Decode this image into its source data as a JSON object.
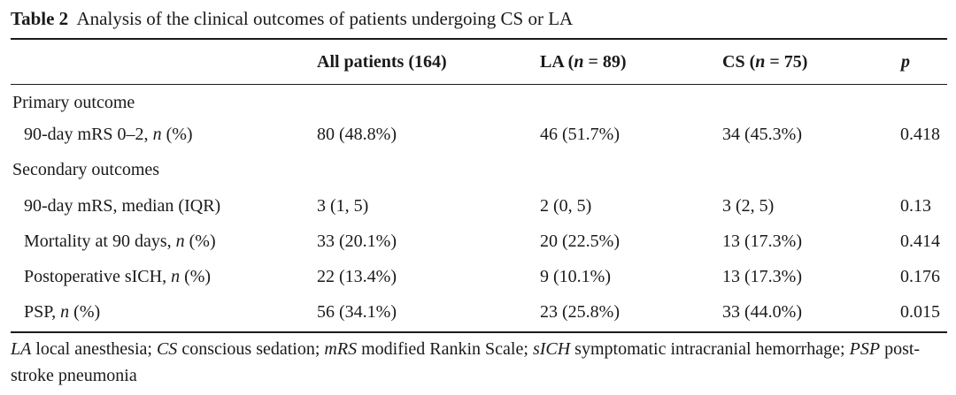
{
  "caption": {
    "label": "Table 2",
    "title": "Analysis of the clinical outcomes of patients undergoing CS or LA"
  },
  "header": {
    "all": "All patients (164)",
    "la_prefix": "LA (",
    "la_n": "n",
    "la_suffix": " = 89)",
    "cs_prefix": "CS (",
    "cs_n": "n",
    "cs_suffix": " = 75)",
    "p": "p"
  },
  "sections": {
    "primary": "Primary outcome",
    "secondary": "Secondary outcomes"
  },
  "rows": [
    {
      "label_main": "90-day mRS 0–2, ",
      "label_italic": "n",
      "label_tail": " (%)",
      "all": "80 (48.8%)",
      "la": "46 (51.7%)",
      "cs": "34 (45.3%)",
      "p": "0.418"
    },
    {
      "label_main": "90-day mRS, median (IQR)",
      "label_italic": "",
      "label_tail": "",
      "all": "3 (1, 5)",
      "la": "2 (0, 5)",
      "cs": "3 (2, 5)",
      "p": "0.13"
    },
    {
      "label_main": "Mortality at 90 days, ",
      "label_italic": "n",
      "label_tail": " (%)",
      "all": "33 (20.1%)",
      "la": "20 (22.5%)",
      "cs": "13 (17.3%)",
      "p": "0.414"
    },
    {
      "label_main": "Postoperative sICH, ",
      "label_italic": "n",
      "label_tail": " (%)",
      "all": "22 (13.4%)",
      "la": "9 (10.1%)",
      "cs": "13 (17.3%)",
      "p": "0.176"
    },
    {
      "label_main": "PSP, ",
      "label_italic": "n",
      "label_tail": " (%)",
      "all": "56 (34.1%)",
      "la": "23 (25.8%)",
      "cs": "33 (44.0%)",
      "p": "0.015"
    }
  ],
  "footnote": {
    "t1": "LA",
    "d1": " local anesthesia; ",
    "t2": "CS",
    "d2": " conscious sedation; ",
    "t3": "mRS",
    "d3": " modified Rankin Scale; ",
    "t4": "sICH",
    "d4": " symptomatic intracranial hemorrhage; ",
    "t5": "PSP",
    "d5": " post-stroke pneumonia"
  }
}
